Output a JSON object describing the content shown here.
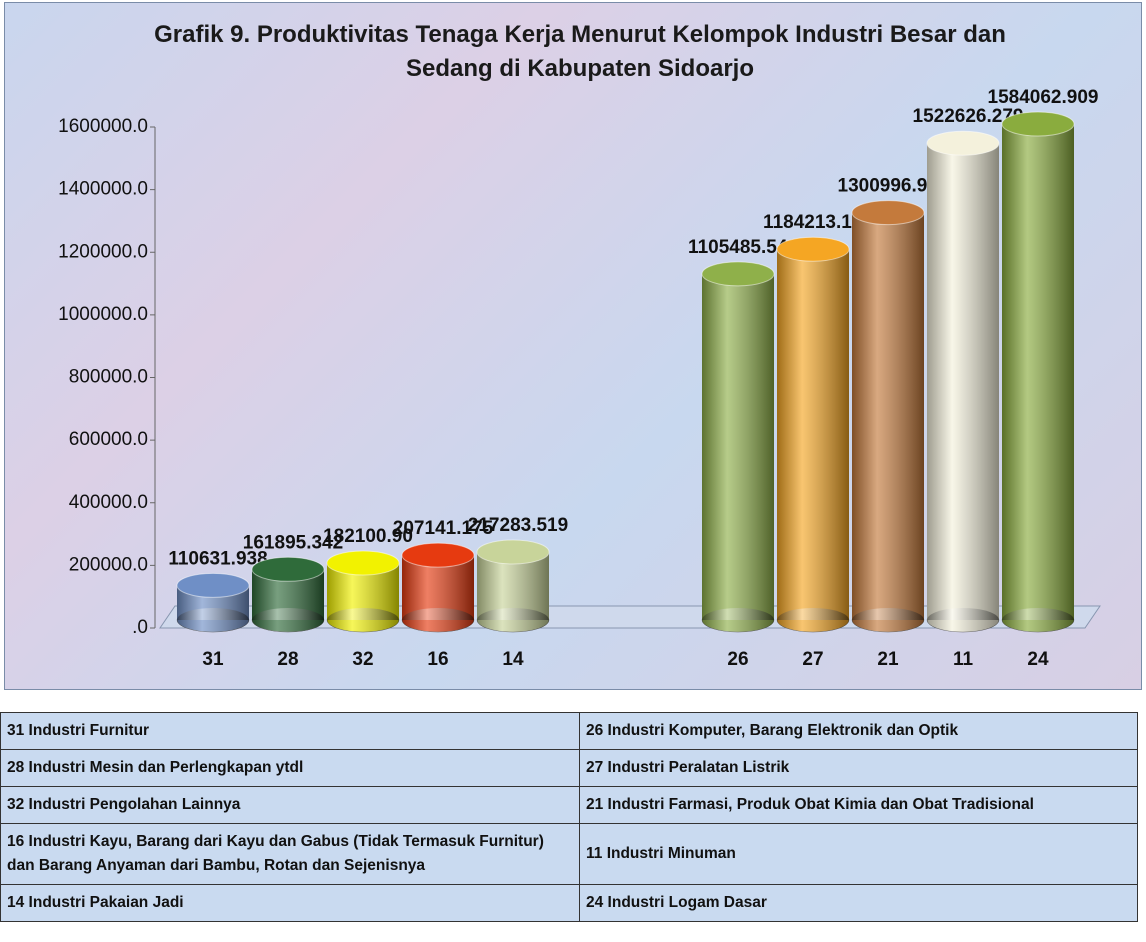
{
  "chart_data": {
    "type": "bar3d",
    "title": "Grafik 9. Produktivitas Tenaga Kerja Menurut Kelompok Industri Besar dan Sedang di Kabupaten Sidoarjo",
    "categories": [
      "31",
      "28",
      "32",
      "16",
      "14",
      null,
      null,
      "26",
      "27",
      "21",
      "11",
      "24"
    ],
    "values": [
      110631.938,
      161895.342,
      182100.9,
      207141.175,
      217283.519,
      null,
      null,
      1105485.546,
      1184213.123,
      1300996.952,
      1522626.279,
      1584062.909
    ],
    "value_labels": [
      "110631.938",
      "161895.342",
      "182100.90",
      "207141.175",
      "217283.519",
      null,
      null,
      "1105485.546",
      "1184213.123",
      "1300996.952",
      "1522626.279",
      "1584062.909"
    ],
    "colors": [
      "#6f8fc6",
      "#2f6b3a",
      "#f2f200",
      "#e63a10",
      "#c8d49a",
      null,
      null,
      "#8fb04a",
      "#f5a623",
      "#c47a3c",
      "#f4f1dc",
      "#8aac3e"
    ],
    "ylim": [
      0,
      1600000
    ],
    "yticks": [
      {
        "value": 0,
        "label": ".0"
      },
      {
        "value": 200000,
        "label": "200000.0"
      },
      {
        "value": 400000,
        "label": "400000.0"
      },
      {
        "value": 600000,
        "label": "600000.0"
      },
      {
        "value": 800000,
        "label": "800000.0"
      },
      {
        "value": 1000000,
        "label": "1000000.0"
      },
      {
        "value": 1200000,
        "label": "1200000.0"
      },
      {
        "value": 1400000,
        "label": "1400000.0"
      },
      {
        "value": 1600000,
        "label": "1600000.0"
      }
    ]
  },
  "legend_table": {
    "rows": [
      [
        "31  Industri Furnitur",
        "26  Industri Komputer, Barang Elektronik dan Optik"
      ],
      [
        "28  Industri Mesin dan Perlengkapan ytdl",
        "27  Industri Peralatan Listrik"
      ],
      [
        "32  Industri Pengolahan Lainnya",
        "21  Industri Farmasi, Produk Obat Kimia dan Obat Tradisional"
      ],
      [
        "16  Industri Kayu, Barang dari Kayu dan Gabus (Tidak Termasuk Furnitur) dan Barang Anyaman dari Bambu, Rotan dan Sejenisnya",
        "11  Industri Minuman"
      ],
      [
        "14  Industri Pakaian Jadi",
        "24  Industri Logam Dasar"
      ]
    ]
  }
}
